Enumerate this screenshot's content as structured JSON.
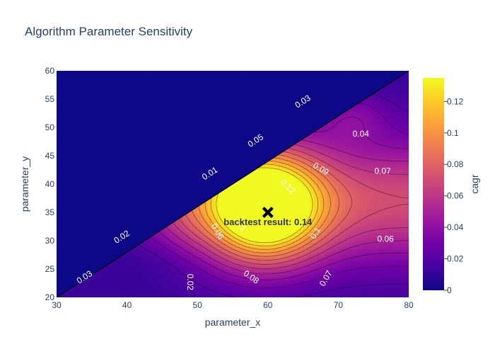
{
  "chart_data": {
    "type": "contour",
    "title": "Algorithm Parameter Sensitivity",
    "xlabel": "parameter_x",
    "ylabel": "parameter_y",
    "xlim": [
      30,
      80
    ],
    "ylim": [
      20,
      60
    ],
    "x_ticks": [
      "30",
      "40",
      "50",
      "60",
      "70",
      "80"
    ],
    "y_ticks": [
      "20",
      "25",
      "30",
      "35",
      "40",
      "45",
      "50",
      "55",
      "60"
    ],
    "colorbar": {
      "title": "cagr",
      "range": [
        0,
        0.135
      ],
      "ticks": [
        "0",
        "0.02",
        "0.04",
        "0.06",
        "0.08",
        "0.1",
        "0.12"
      ],
      "colors": [
        "#0d0887",
        "#46039f",
        "#7201a8",
        "#9c179e",
        "#bd3786",
        "#d8576b",
        "#ed7953",
        "#fb9f3a",
        "#fdca26",
        "#f0f921"
      ]
    },
    "invalid_region": "y > 0.8*x - 4",
    "invalid_color": "#0d0887",
    "peaks": [
      {
        "x": 59.5,
        "y": 36,
        "value": 0.135
      },
      {
        "x": 72,
        "y": 52,
        "value": 0.035
      },
      {
        "x": 46,
        "y": 27,
        "value": 0.03
      }
    ],
    "contour_labels": [
      {
        "text": "0.03",
        "x": 34,
        "y": 23.5,
        "angle": -33
      },
      {
        "text": "0.02",
        "x": 39.3,
        "y": 30.6,
        "angle": -33
      },
      {
        "text": "0.01",
        "x": 51.8,
        "y": 41.8,
        "angle": -33
      },
      {
        "text": "0.05",
        "x": 58.3,
        "y": 47.6,
        "angle": -33
      },
      {
        "text": "0.03",
        "x": 65,
        "y": 54.5,
        "angle": -33
      },
      {
        "text": "0.04",
        "x": 73.2,
        "y": 48.8,
        "angle": 0
      },
      {
        "text": "0.07",
        "x": 76.3,
        "y": 42.2,
        "angle": 0
      },
      {
        "text": "0.09",
        "x": 67.5,
        "y": 42.6,
        "angle": 30
      },
      {
        "text": "0.12",
        "x": 62.8,
        "y": 39.5,
        "angle": 45
      },
      {
        "text": "0.1",
        "x": 56.2,
        "y": 32.7,
        "angle": 60
      },
      {
        "text": "0.06",
        "x": 52.8,
        "y": 31.6,
        "angle": 60
      },
      {
        "text": "0.1",
        "x": 66.8,
        "y": 31.3,
        "angle": -60
      },
      {
        "text": "0.06",
        "x": 76.7,
        "y": 30.2,
        "angle": 0
      },
      {
        "text": "0.02",
        "x": 48.9,
        "y": 22.7,
        "angle": 90
      },
      {
        "text": "0.08",
        "x": 57.6,
        "y": 23.5,
        "angle": 35
      },
      {
        "text": "0.07",
        "x": 68.3,
        "y": 23.3,
        "angle": -60
      }
    ],
    "annotation": {
      "text": "backtest result: 0.14",
      "marker": "x",
      "x": 60,
      "y": 35
    }
  }
}
